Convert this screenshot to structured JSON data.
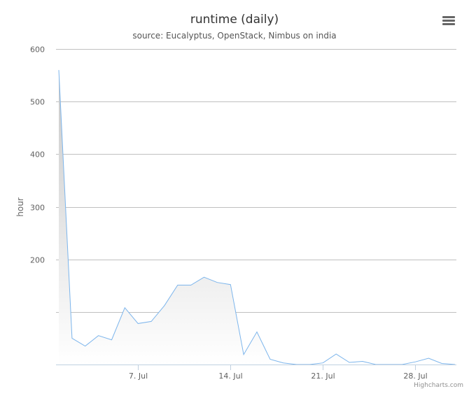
{
  "chart_data": {
    "type": "area",
    "title": "runtime (daily)",
    "subtitle": "source: Eucalyptus, OpenStack, Nimbus on india",
    "ylabel": "hour",
    "ylim": [
      0,
      600
    ],
    "y_tick_labels": [
      "",
      "",
      "200",
      "300",
      "400",
      "500",
      "600"
    ],
    "y_tick_values": [
      0,
      100,
      200,
      300,
      400,
      500,
      600
    ],
    "x_start": "2014-07-01",
    "x_end": "2014-07-31",
    "x_tick_labels": [
      "7. Jul",
      "14. Jul",
      "21. Jul",
      "28. Jul"
    ],
    "x_tick_dates": [
      "2014-07-07",
      "2014-07-14",
      "2014-07-21",
      "2014-07-28"
    ],
    "grid": true,
    "legend": "none",
    "series": [
      {
        "color": "#7cb5ec",
        "points": [
          [
            "2014-07-01",
            560
          ],
          [
            "2014-07-02",
            50
          ],
          [
            "2014-07-03",
            35
          ],
          [
            "2014-07-04",
            55
          ],
          [
            "2014-07-05",
            47
          ],
          [
            "2014-07-06",
            108
          ],
          [
            "2014-07-07",
            78
          ],
          [
            "2014-07-08",
            82
          ],
          [
            "2014-07-09",
            112
          ],
          [
            "2014-07-10",
            151
          ],
          [
            "2014-07-11",
            151
          ],
          [
            "2014-07-12",
            166
          ],
          [
            "2014-07-13",
            156
          ],
          [
            "2014-07-14",
            152
          ],
          [
            "2014-07-15",
            19
          ],
          [
            "2014-07-16",
            62
          ],
          [
            "2014-07-17",
            10
          ],
          [
            "2014-07-18",
            3
          ],
          [
            "2014-07-19",
            0
          ],
          [
            "2014-07-20",
            0
          ],
          [
            "2014-07-21",
            3
          ],
          [
            "2014-07-22",
            20
          ],
          [
            "2014-07-23",
            4
          ],
          [
            "2014-07-24",
            6
          ],
          [
            "2014-07-25",
            0
          ],
          [
            "2014-07-26",
            0
          ],
          [
            "2014-07-27",
            0
          ],
          [
            "2014-07-28",
            5
          ],
          [
            "2014-07-29",
            12
          ],
          [
            "2014-07-30",
            2
          ],
          [
            "2014-07-31",
            0
          ]
        ]
      }
    ]
  },
  "credits": "Highcharts.com",
  "menu_icon": "hamburger-menu-icon"
}
